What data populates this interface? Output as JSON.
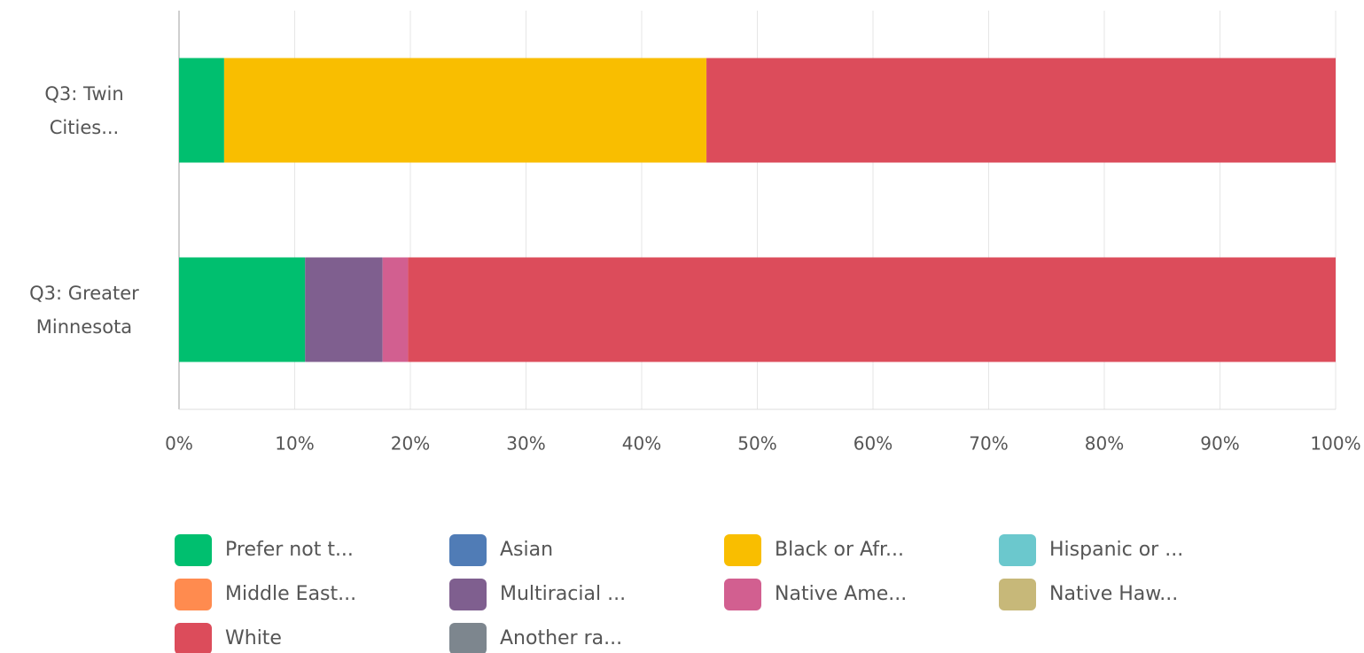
{
  "chart_data": {
    "type": "stacked_bar_horizontal",
    "categories": [
      "Q3: Twin Cities...",
      "Q3: Greater Minnesota"
    ],
    "series": [
      {
        "name": "Prefer not t...",
        "color": "#00bf6f",
        "values": [
          3.9,
          10.9
        ]
      },
      {
        "name": "Asian",
        "color": "#507cb6",
        "values": [
          0,
          0
        ]
      },
      {
        "name": "Black or Afr...",
        "color": "#f9be00",
        "values": [
          41.7,
          0
        ]
      },
      {
        "name": "Hispanic or ...",
        "color": "#6bc8cd",
        "values": [
          0,
          0
        ]
      },
      {
        "name": "Middle East...",
        "color": "#ff8b4f",
        "values": [
          0,
          0
        ]
      },
      {
        "name": "Multiracial ...",
        "color": "#7f5f8f",
        "values": [
          0,
          6.7
        ]
      },
      {
        "name": "Native Ame...",
        "color": "#d25f90",
        "values": [
          0,
          2.2
        ]
      },
      {
        "name": "Native Haw...",
        "color": "#c7b879",
        "values": [
          0,
          0
        ]
      },
      {
        "name": "White",
        "color": "#dc4c5b",
        "values": [
          54.4,
          80.2
        ]
      },
      {
        "name": "Another ra...",
        "color": "#7d868e",
        "values": [
          0,
          0
        ]
      }
    ],
    "xlim": [
      0,
      100
    ],
    "xticks": [
      {
        "value": 0,
        "label": "0%"
      },
      {
        "value": 10,
        "label": "10%"
      },
      {
        "value": 20,
        "label": "20%"
      },
      {
        "value": 30,
        "label": "30%"
      },
      {
        "value": 40,
        "label": "40%"
      },
      {
        "value": 50,
        "label": "50%"
      },
      {
        "value": 60,
        "label": "60%"
      },
      {
        "value": 70,
        "label": "70%"
      },
      {
        "value": 80,
        "label": "80%"
      },
      {
        "value": 90,
        "label": "90%"
      },
      {
        "value": 100,
        "label": "100%"
      }
    ],
    "grid": true,
    "legend": "bottom"
  }
}
